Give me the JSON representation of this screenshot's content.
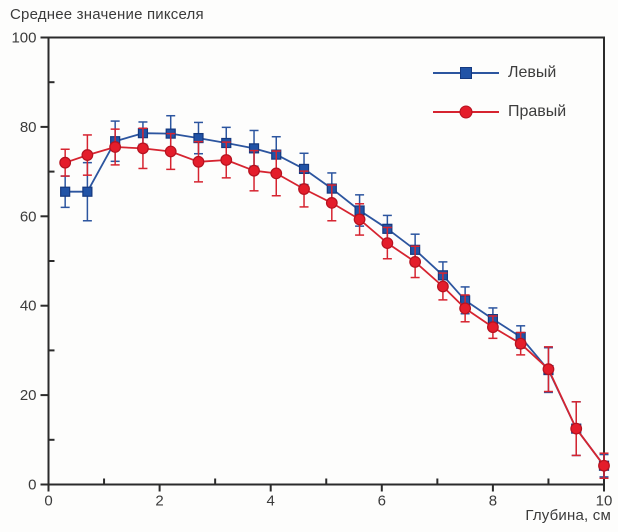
{
  "chart_data": {
    "type": "line",
    "title": "Среднее значение пикселя",
    "xlabel": "Глубина, см",
    "ylabel": "Среднее значение пикселя",
    "xlim": [
      0,
      10
    ],
    "ylim": [
      0,
      100
    ],
    "grid": false,
    "legend_position": "top-right-inside",
    "axis_color": "#2b2b2b",
    "text_color": "#3b3b3b",
    "x_major_ticks": [
      0,
      2,
      4,
      6,
      8,
      10
    ],
    "x_minor_ticks": [
      1,
      3,
      5,
      7,
      9
    ],
    "y_major_ticks": [
      0,
      20,
      40,
      60,
      80,
      100
    ],
    "y_minor_ticks": [
      10,
      30,
      50,
      70,
      90
    ],
    "x": [
      0.3,
      0.7,
      1.2,
      1.7,
      2.2,
      2.7,
      3.2,
      3.7,
      4.1,
      4.6,
      5.1,
      5.6,
      6.1,
      6.6,
      7.1,
      7.5,
      8.0,
      8.5,
      9.0,
      9.5,
      10.0
    ],
    "series": [
      {
        "name": "Левый",
        "marker": "square",
        "color": "#2c559f",
        "fill": "#2153a6",
        "edge": "#15397f",
        "values": [
          65.5,
          65.5,
          76.8,
          78.6,
          78.5,
          77.5,
          76.4,
          75.2,
          73.8,
          70.6,
          66.2,
          61.3,
          57.2,
          52.5,
          46.8,
          41.2,
          37.0,
          33.0,
          25.6,
          12.5,
          4.2
        ],
        "errors": [
          3.5,
          6.5,
          4.5,
          2.5,
          4.0,
          3.5,
          3.5,
          4.0,
          4.0,
          3.5,
          3.5,
          3.5,
          3.0,
          3.5,
          3.0,
          3.0,
          2.5,
          2.5,
          5.0,
          6.0,
          2.5
        ]
      },
      {
        "name": "Правый",
        "marker": "circle",
        "color": "#d62430",
        "fill": "#e41d2b",
        "edge": "#b5121f",
        "values": [
          72.0,
          73.7,
          75.5,
          75.2,
          74.5,
          72.2,
          72.6,
          70.2,
          69.6,
          66.1,
          63.0,
          59.3,
          54.0,
          49.8,
          44.3,
          39.4,
          35.2,
          31.5,
          25.8,
          12.5,
          4.2
        ],
        "errors": [
          3.0,
          4.5,
          4.0,
          4.5,
          4.0,
          4.5,
          4.0,
          4.5,
          5.0,
          4.0,
          4.0,
          3.5,
          3.5,
          3.5,
          3.0,
          3.0,
          2.5,
          2.5,
          5.0,
          6.0,
          2.8
        ]
      }
    ]
  }
}
